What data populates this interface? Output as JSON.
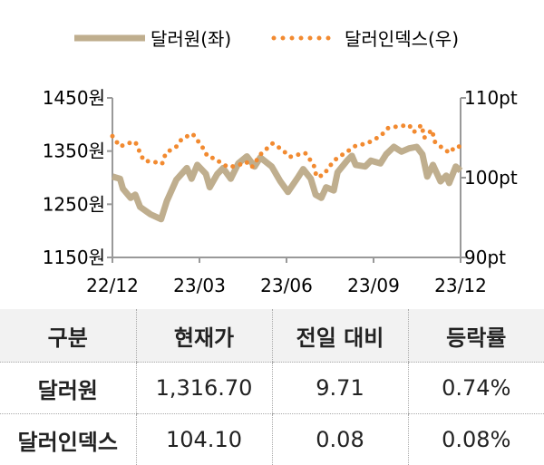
{
  "chart_data": {
    "type": "line",
    "legend": {
      "placement": "top",
      "entries": [
        "달러원(좌)",
        "달러인덱스(우)"
      ]
    },
    "x_ticks": [
      "22/12",
      "23/03",
      "23/06",
      "23/09",
      "23/12"
    ],
    "y_left": {
      "ticks": [
        "1450원",
        "1350원",
        "1250원",
        "1150원"
      ],
      "range": [
        1150,
        1450
      ]
    },
    "y_right": {
      "ticks": [
        "110pt",
        "100pt",
        "90pt"
      ],
      "range": [
        90,
        110
      ]
    },
    "grid": false,
    "series": [
      {
        "name": "달러원(좌)",
        "axis": "left",
        "color": "#bfae8e",
        "style": "solid-thick",
        "points": [
          [
            "2022-12-01",
            1302
          ],
          [
            "2022-12-09",
            1298
          ],
          [
            "2022-12-12",
            1279
          ],
          [
            "2022-12-20",
            1262
          ],
          [
            "2022-12-25",
            1268
          ],
          [
            "2022-12-30",
            1245
          ],
          [
            "2023-01-10",
            1231
          ],
          [
            "2023-01-21",
            1222
          ],
          [
            "2023-01-27",
            1256
          ],
          [
            "2023-02-06",
            1296
          ],
          [
            "2023-02-17",
            1318
          ],
          [
            "2023-02-22",
            1298
          ],
          [
            "2023-02-28",
            1324
          ],
          [
            "2023-03-09",
            1307
          ],
          [
            "2023-03-13",
            1282
          ],
          [
            "2023-03-21",
            1307
          ],
          [
            "2023-03-27",
            1318
          ],
          [
            "2023-04-04",
            1298
          ],
          [
            "2023-04-12",
            1327
          ],
          [
            "2023-04-21",
            1340
          ],
          [
            "2023-04-29",
            1321
          ],
          [
            "2023-05-05",
            1338
          ],
          [
            "2023-05-17",
            1321
          ],
          [
            "2023-05-26",
            1293
          ],
          [
            "2023-06-03",
            1273
          ],
          [
            "2023-06-14",
            1302
          ],
          [
            "2023-06-19",
            1316
          ],
          [
            "2023-06-27",
            1298
          ],
          [
            "2023-07-02",
            1268
          ],
          [
            "2023-07-08",
            1262
          ],
          [
            "2023-07-13",
            1282
          ],
          [
            "2023-07-21",
            1276
          ],
          [
            "2023-07-25",
            1310
          ],
          [
            "2023-08-04",
            1332
          ],
          [
            "2023-08-09",
            1341
          ],
          [
            "2023-08-13",
            1324
          ],
          [
            "2023-08-23",
            1321
          ],
          [
            "2023-08-29",
            1332
          ],
          [
            "2023-09-08",
            1327
          ],
          [
            "2023-09-14",
            1344
          ],
          [
            "2023-09-22",
            1358
          ],
          [
            "2023-09-30",
            1349
          ],
          [
            "2023-10-08",
            1355
          ],
          [
            "2023-10-16",
            1358
          ],
          [
            "2023-10-22",
            1344
          ],
          [
            "2023-10-27",
            1302
          ],
          [
            "2023-11-02",
            1324
          ],
          [
            "2023-11-10",
            1293
          ],
          [
            "2023-11-16",
            1304
          ],
          [
            "2023-11-19",
            1290
          ],
          [
            "2023-11-26",
            1321
          ],
          [
            "2023-12-01",
            1313
          ]
        ]
      },
      {
        "name": "달러인덱스(우)",
        "axis": "right",
        "color": "#f28a30",
        "style": "dotted",
        "points": [
          [
            "2022-12-01",
            105.2
          ],
          [
            "2022-12-09",
            103.9
          ],
          [
            "2022-12-17",
            104.3
          ],
          [
            "2022-12-25",
            104.5
          ],
          [
            "2022-12-30",
            103.1
          ],
          [
            "2023-01-03",
            102.1
          ],
          [
            "2023-01-13",
            102.0
          ],
          [
            "2023-01-22",
            101.7
          ],
          [
            "2023-01-26",
            103.1
          ],
          [
            "2023-02-06",
            103.9
          ],
          [
            "2023-02-12",
            104.9
          ],
          [
            "2023-02-23",
            105.5
          ],
          [
            "2023-03-05",
            103.9
          ],
          [
            "2023-03-11",
            102.6
          ],
          [
            "2023-03-19",
            102.4
          ],
          [
            "2023-03-25",
            101.8
          ],
          [
            "2023-04-02",
            101.3
          ],
          [
            "2023-04-13",
            101.6
          ],
          [
            "2023-04-20",
            102.0
          ],
          [
            "2023-04-26",
            101.3
          ],
          [
            "2023-05-06",
            103.0
          ],
          [
            "2023-05-18",
            104.3
          ],
          [
            "2023-05-28",
            103.5
          ],
          [
            "2023-06-05",
            102.6
          ],
          [
            "2023-06-14",
            102.9
          ],
          [
            "2023-06-21",
            103.1
          ],
          [
            "2023-06-30",
            101.6
          ],
          [
            "2023-07-03",
            100.1
          ],
          [
            "2023-07-10",
            100.3
          ],
          [
            "2023-07-18",
            101.6
          ],
          [
            "2023-07-24",
            102.4
          ],
          [
            "2023-08-07",
            103.5
          ],
          [
            "2023-08-13",
            104.0
          ],
          [
            "2023-08-25",
            104.3
          ],
          [
            "2023-09-08",
            105.2
          ],
          [
            "2023-09-16",
            106.2
          ],
          [
            "2023-09-25",
            106.4
          ],
          [
            "2023-10-08",
            106.6
          ],
          [
            "2023-10-13",
            105.7
          ],
          [
            "2023-10-21",
            106.6
          ],
          [
            "2023-10-24",
            105.0
          ],
          [
            "2023-11-01",
            106.0
          ],
          [
            "2023-11-04",
            104.5
          ],
          [
            "2023-11-14",
            103.5
          ],
          [
            "2023-11-20",
            103.1
          ],
          [
            "2023-11-25",
            103.9
          ],
          [
            "2023-12-01",
            103.9
          ]
        ]
      }
    ]
  },
  "table": {
    "headers": [
      "구분",
      "현재가",
      "전일 대비",
      "등락률"
    ],
    "rows": [
      [
        "달러원",
        "1,316.70",
        "9.71",
        "0.74%"
      ],
      [
        "달러인덱스",
        "104.10",
        "0.08",
        "0.08%"
      ]
    ]
  }
}
